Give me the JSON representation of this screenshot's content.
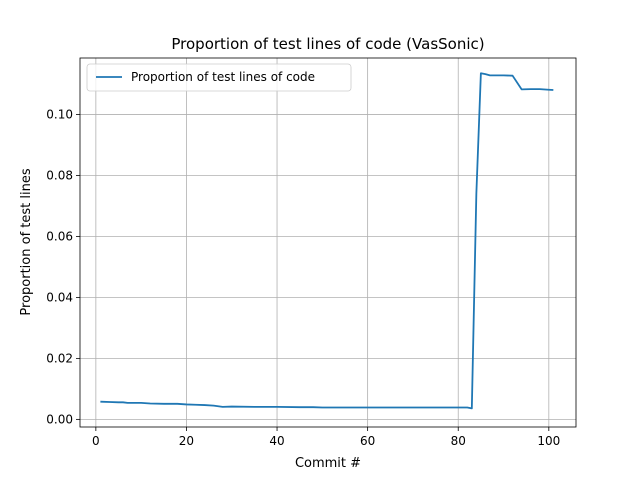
{
  "chart_data": {
    "type": "line",
    "title": "Proportion of test lines of code (VasSonic)",
    "xlabel": "Commit #",
    "ylabel": "Proportion of test lines",
    "xlim": [
      -3.5,
      106
    ],
    "ylim": [
      -0.0025,
      0.1185
    ],
    "x_ticks": [
      0,
      20,
      40,
      60,
      80,
      100
    ],
    "y_ticks": [
      0.0,
      0.02,
      0.04,
      0.06,
      0.08,
      0.1
    ],
    "x_tick_labels": [
      "0",
      "20",
      "40",
      "60",
      "80",
      "100"
    ],
    "y_tick_labels": [
      "0.00",
      "0.02",
      "0.04",
      "0.06",
      "0.08",
      "0.10"
    ],
    "grid": true,
    "legend": "upper-left",
    "series": [
      {
        "name": "Proportion of test lines of code",
        "color": "#1f77b4",
        "x": [
          1,
          3,
          5,
          6,
          7,
          10,
          12,
          15,
          18,
          20,
          22,
          24,
          26,
          28,
          30,
          35,
          40,
          45,
          48,
          50,
          55,
          60,
          65,
          70,
          75,
          80,
          82,
          83,
          84,
          85,
          86,
          87,
          88,
          90,
          92,
          94,
          96,
          98,
          100,
          101
        ],
        "y": [
          0.0058,
          0.0057,
          0.0056,
          0.0056,
          0.0054,
          0.0054,
          0.0052,
          0.0051,
          0.0051,
          0.0049,
          0.0048,
          0.0047,
          0.0045,
          0.0041,
          0.0042,
          0.0041,
          0.0041,
          0.004,
          0.004,
          0.0039,
          0.0039,
          0.0039,
          0.0039,
          0.0039,
          0.0039,
          0.0039,
          0.0039,
          0.0036,
          0.074,
          0.1135,
          0.1132,
          0.1128,
          0.1128,
          0.1128,
          0.1127,
          0.1082,
          0.1083,
          0.1083,
          0.1081,
          0.108
        ]
      }
    ]
  }
}
